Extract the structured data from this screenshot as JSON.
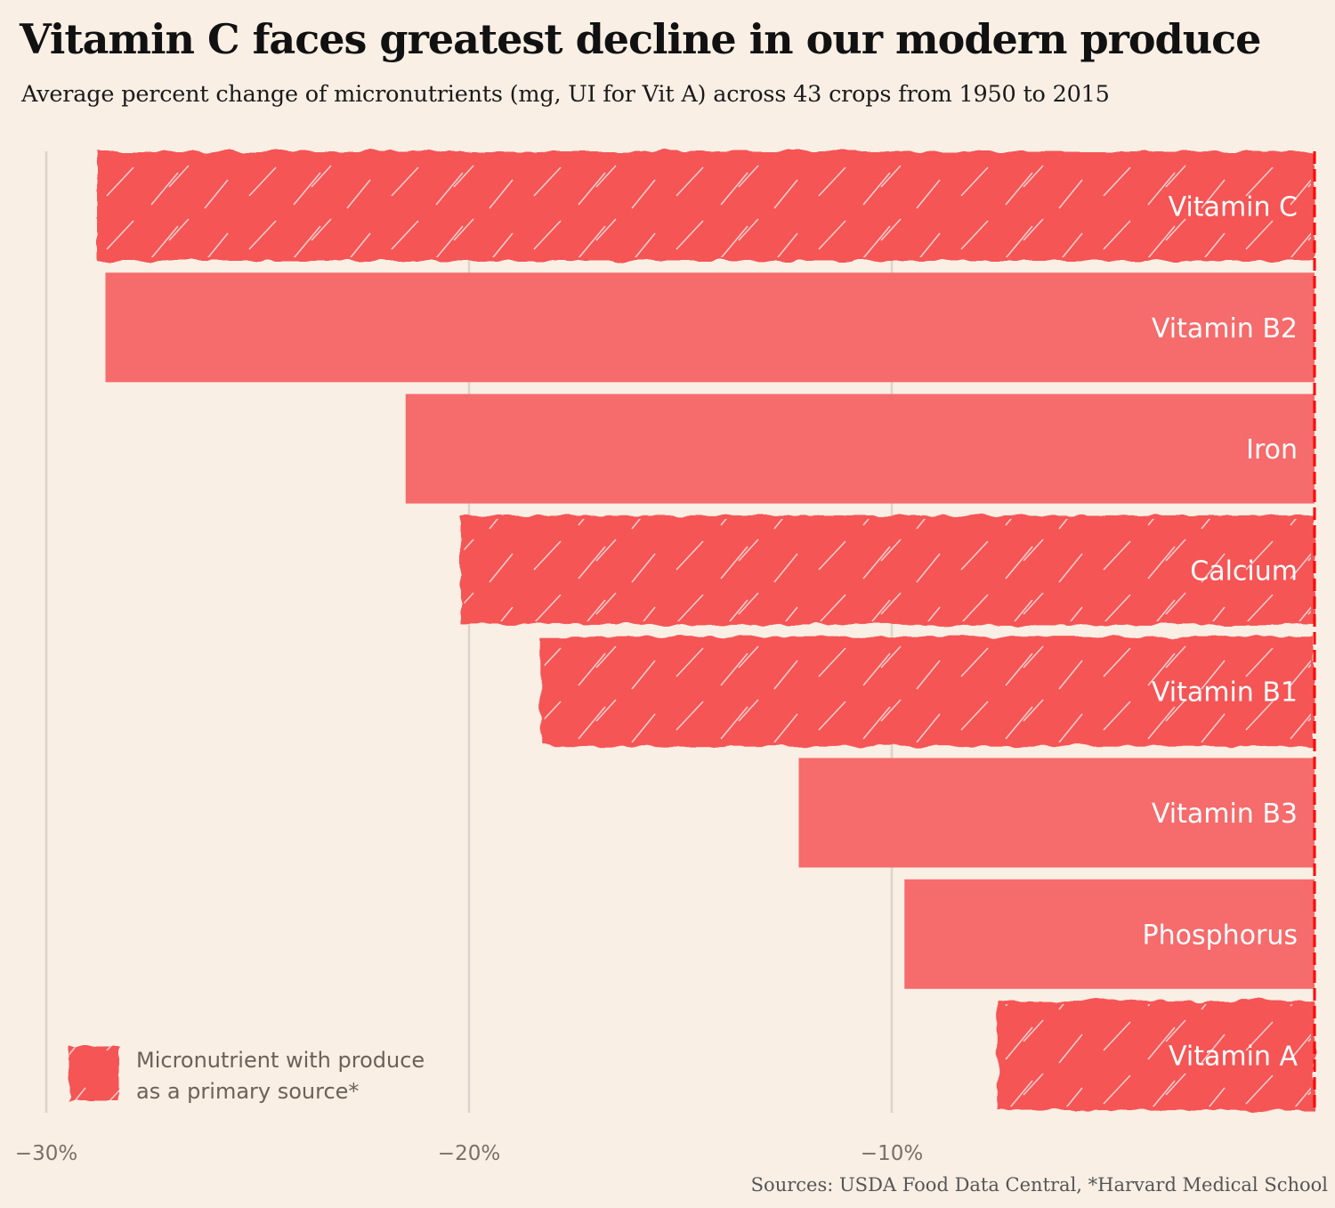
{
  "title": "Vitamin C faces greatest decline in our modern produce",
  "subtitle": "Average percent change of micronutrients (mg, UI for Vit A) across 43 crops from 1950 to 2015",
  "source": "Sources: USDA Food Data Central, *Harvard Medical School",
  "colors": {
    "background": "#f9efe5",
    "primary_source_bar": "#f55555",
    "other_bar": "#f66b6b",
    "zero_line": "#ff0000",
    "grid": "#dcd4cc"
  },
  "legend": {
    "line1": "Micronutrient with produce",
    "line2": "as a primary source*"
  },
  "chart_data": {
    "type": "bar",
    "orientation": "horizontal",
    "title": "Vitamin C faces greatest decline in our modern produce",
    "xlabel": "",
    "ylabel": "",
    "xlim": [
      -31,
      0
    ],
    "x_ticks": [
      -30,
      -20,
      -10
    ],
    "x_tick_labels": [
      "−30%",
      "−20%",
      "−10%"
    ],
    "grid": true,
    "legend_position": "bottom-left",
    "categories": [
      "Vitamin C",
      "Vitamin B2",
      "Iron",
      "Calcium",
      "Vitamin B1",
      "Vitamin B3",
      "Phosphorus",
      "Vitamin A"
    ],
    "values": [
      -28.8,
      -28.6,
      -21.5,
      -20.2,
      -18.3,
      -12.2,
      -9.7,
      -7.5
    ],
    "unit": "%",
    "primary_source": [
      true,
      false,
      false,
      true,
      true,
      false,
      false,
      true
    ]
  }
}
